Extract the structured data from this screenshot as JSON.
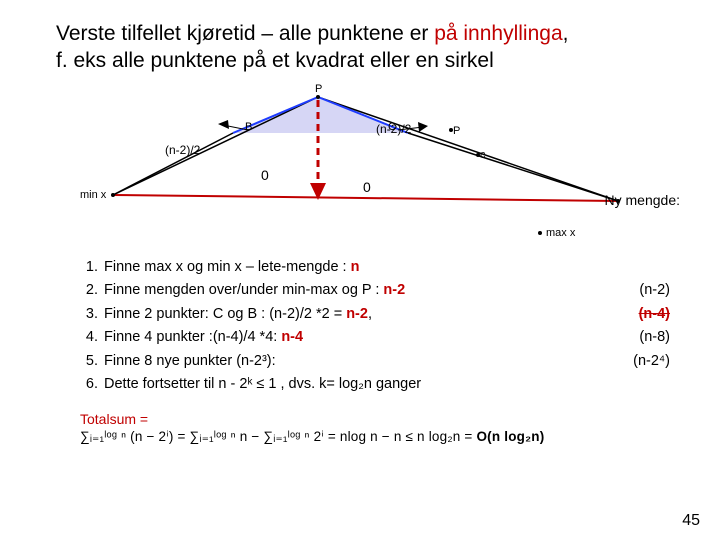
{
  "title": {
    "plain": "Verste tilfellet kjøretid – alle punktene er ",
    "accent": "på innhyllinga",
    "rest": ",\nf. eks alle punktene på et kvadrat eller en sirkel"
  },
  "diagram": {
    "labels": {
      "P": "P",
      "B": "B",
      "C": "C",
      "c_small": "c",
      "p_small": "P",
      "min_x": "min x",
      "max_x": "max x",
      "n2_left": "(n-2)/2",
      "n2_right": "(n-2)/2",
      "zero_left": "0",
      "zero_right": "0"
    },
    "colors": {
      "red_line": "#c00000",
      "blue_line": "#1e3cff",
      "black": "#000000"
    }
  },
  "ny_mengde": "Ny mengde:",
  "steps": [
    {
      "text": "Finne max x og min x        –    lete-mengde : ",
      "red": "n",
      "right": ""
    },
    {
      "text": "Finne mengden over/under min-max og P :  ",
      "red": "n-2",
      "right": "(n-2)"
    },
    {
      "text": "Finne 2 punkter: C og B   : (n-2)/2 *2 =   ",
      "red": "n-2",
      "extra_strike": "(n-4)",
      "right": ""
    },
    {
      "text": "Finne 4 punkter   :(n-4)/4 *4:                      ",
      "red": "n-4",
      "right": "(n-8)"
    },
    {
      "text": "Finne  8 nye punkter (n-2³):",
      "red": "",
      "right": "(n-2⁴)"
    },
    {
      "text": "Dette fortsetter til n - 2ᵏ ≤ 1 , dvs. k= log₂n ganger",
      "red": "",
      "right": ""
    }
  ],
  "totalsum_label": "Totalsum =",
  "formula": {
    "lhs": "∑ᵢ₌₁ˡᵒᵍ ⁿ (n − 2ⁱ) =  ∑ᵢ₌₁ˡᵒᵍ ⁿ n  −  ∑ᵢ₌₁ˡᵒᵍ ⁿ 2ⁱ  = nlog n − n ≤ n log₂n = ",
    "rhs": "O(n log₂n)"
  },
  "page": "45"
}
